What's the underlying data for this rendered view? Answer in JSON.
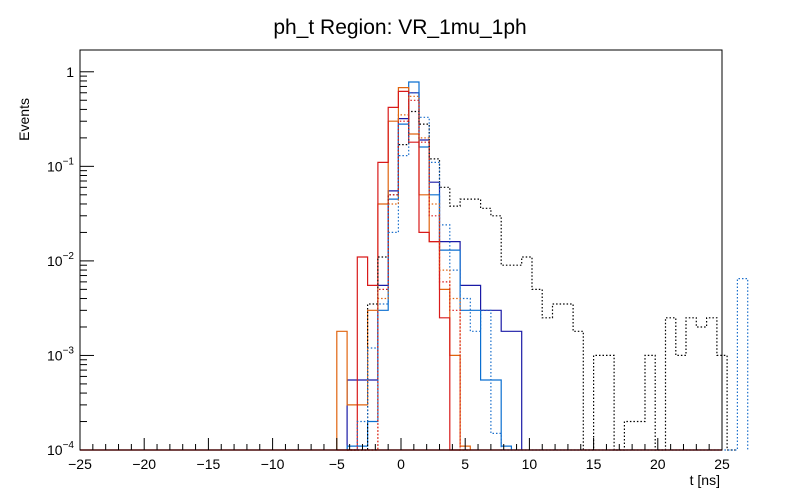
{
  "chart_data": {
    "type": "histogram-step",
    "title": "ph_t Region: VR_1mu_1ph",
    "xlabel": "t [ns]",
    "ylabel": "Events",
    "xlim": [
      -25,
      25
    ],
    "ylim": [
      0.0001,
      1.7
    ],
    "yscale": "log",
    "bin_width": 0.8,
    "x_ticks": [
      -25,
      -20,
      -15,
      -10,
      -5,
      0,
      5,
      10,
      15,
      20,
      25
    ],
    "x_tick_labels": [
      "−25",
      "−20",
      "−15",
      "−10",
      "−5",
      "0",
      "5",
      "10",
      "15",
      "20",
      "25"
    ],
    "y_ticks": [
      {
        "value": 1,
        "label": "1"
      },
      {
        "value": 0.1,
        "base": "10",
        "exp": "−1"
      },
      {
        "value": 0.01,
        "base": "10",
        "exp": "−2"
      },
      {
        "value": 0.001,
        "base": "10",
        "exp": "−3"
      },
      {
        "value": 0.0001,
        "base": "10",
        "exp": "−4"
      }
    ],
    "series": [
      {
        "name": "dark-blue-solid",
        "color": "#1a1aa6",
        "style": "solid",
        "start": -4.2,
        "values": [
          0.00055,
          0.00055,
          0.00055,
          0.0055,
          0.055,
          0.32,
          0.6,
          0.19,
          0.068,
          0.016,
          0.016,
          0.0055,
          0.0055,
          0.003,
          0.003,
          0.0018,
          0.0018
        ]
      },
      {
        "name": "blue-solid",
        "color": "#0b6fd0",
        "style": "solid",
        "start": -4.2,
        "values": [
          0.00011,
          0.00011,
          0.0002,
          0.003,
          0.045,
          0.28,
          0.78,
          0.16,
          0.05,
          0.013,
          0.013,
          0.003,
          0.003,
          0.00055,
          0.00055,
          0.00011
        ]
      },
      {
        "name": "orange-solid",
        "color": "#e0640f",
        "style": "solid",
        "start": -5.0,
        "values": [
          0.0018,
          0.0003,
          0.0003,
          0.003,
          0.04,
          0.3,
          0.68,
          0.22,
          0.05,
          0.016,
          0.005,
          0.001,
          0.00011
        ]
      },
      {
        "name": "red-solid",
        "color": "#d91a1a",
        "style": "solid",
        "start": -5.0,
        "values": [
          0.0001,
          0.0001,
          0.011,
          0.0055,
          0.11,
          0.42,
          0.62,
          0.18,
          0.02,
          0.016,
          0.0025,
          0.0001
        ]
      },
      {
        "name": "black-dotted",
        "color": "#000000",
        "style": "dotted",
        "start": -4.2,
        "values": [
          0.0001,
          0.0001,
          0.0035,
          0.011,
          0.05,
          0.17,
          0.38,
          0.28,
          0.12,
          0.06,
          0.038,
          0.045,
          0.045,
          0.036,
          0.03,
          0.009,
          0.009,
          0.011,
          0.005,
          0.0025,
          0.0035,
          0.0035,
          0.0018,
          0.0001,
          0.001,
          0.001,
          0.0001,
          0.0002,
          0.0002,
          0.001,
          0.0001,
          0.0025,
          0.001,
          0.0025,
          0.002,
          0.0025,
          0.001,
          0.0001
        ]
      },
      {
        "name": "blue-dotted",
        "color": "#1a6fcc",
        "style": "dotted",
        "start": -3.4,
        "values": [
          0.0002,
          0.0012,
          0.0035,
          0.02,
          0.13,
          0.6,
          0.33,
          0.11,
          0.024,
          0.008,
          0.004,
          0.0018,
          0.003,
          0.00015,
          0.0001,
          0.0001,
          0.0001,
          0.0001,
          0.0001,
          0.0001,
          0.0001,
          0.0001,
          0.0001,
          0.0001,
          0.0001,
          0.0001,
          0.0001,
          0.0001,
          0.0001,
          0.0001,
          0.0001,
          0.0001,
          0.0001,
          0.0001,
          0.0001,
          0.0001,
          0.0001,
          0.0065
        ]
      },
      {
        "name": "orange-dotted",
        "color": "#e0640f",
        "style": "dotted",
        "start": -4.2,
        "values": [
          0.0001,
          0.0001,
          0.0001,
          0.004,
          0.04,
          0.35,
          0.55,
          0.2,
          0.04,
          0.008,
          0.004,
          0.0001
        ]
      },
      {
        "name": "red-dotted",
        "color": "#d91a1a",
        "style": "dotted",
        "start": -4.2,
        "values": [
          0.0001,
          0.0001,
          0.0001,
          0.005,
          0.05,
          0.3,
          0.5,
          0.18,
          0.03,
          0.006,
          0.003,
          0.0001
        ]
      }
    ]
  }
}
